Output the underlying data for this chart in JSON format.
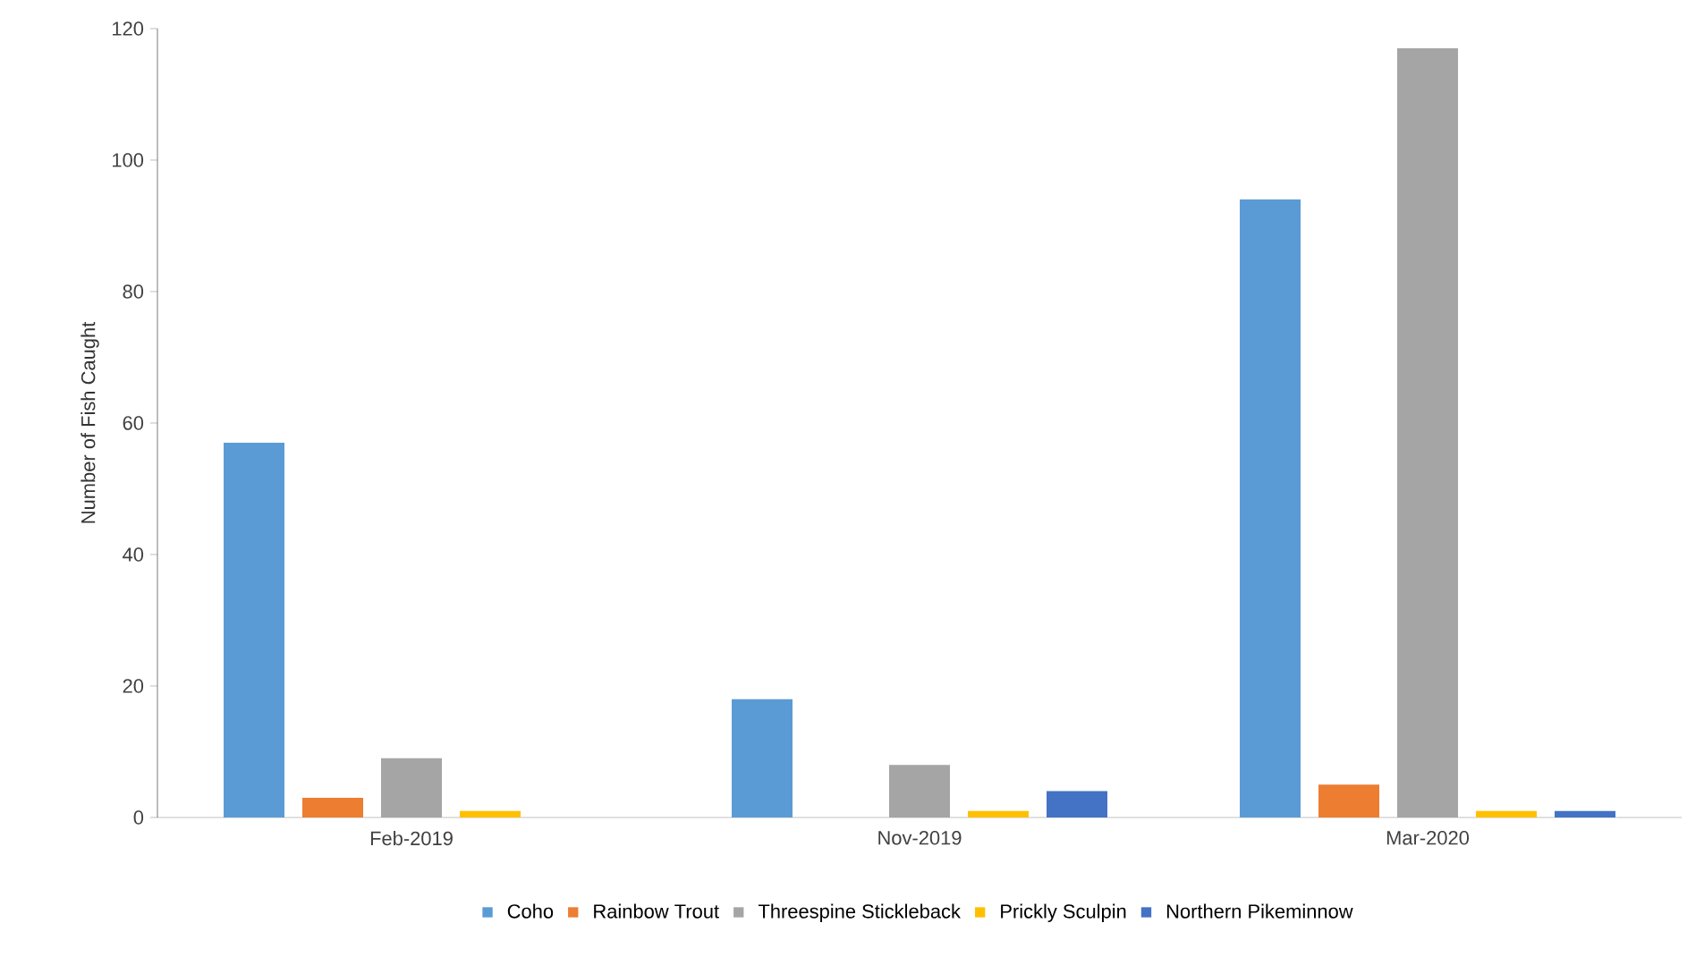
{
  "chart_data": {
    "type": "bar",
    "ylabel": "Number of Fish Caught",
    "categories": [
      "Feb-2019",
      "Nov-2019",
      "Mar-2020"
    ],
    "series": [
      {
        "name": "Coho",
        "color": "#5b9bd5",
        "values": [
          57,
          18,
          94
        ]
      },
      {
        "name": "Rainbow Trout",
        "color": "#ed7d31",
        "values": [
          3,
          0,
          5
        ]
      },
      {
        "name": "Threespine Stickleback",
        "color": "#a5a5a5",
        "values": [
          9,
          8,
          117
        ]
      },
      {
        "name": "Prickly Sculpin",
        "color": "#ffc000",
        "values": [
          1,
          1,
          1
        ]
      },
      {
        "name": "Northern Pikeminnow",
        "color": "#4472c4",
        "values": [
          0,
          4,
          1
        ]
      }
    ],
    "ylim": [
      0,
      120
    ],
    "yticks": [
      0,
      20,
      40,
      60,
      80,
      100,
      120
    ],
    "grid": false,
    "legend": "bottom"
  }
}
